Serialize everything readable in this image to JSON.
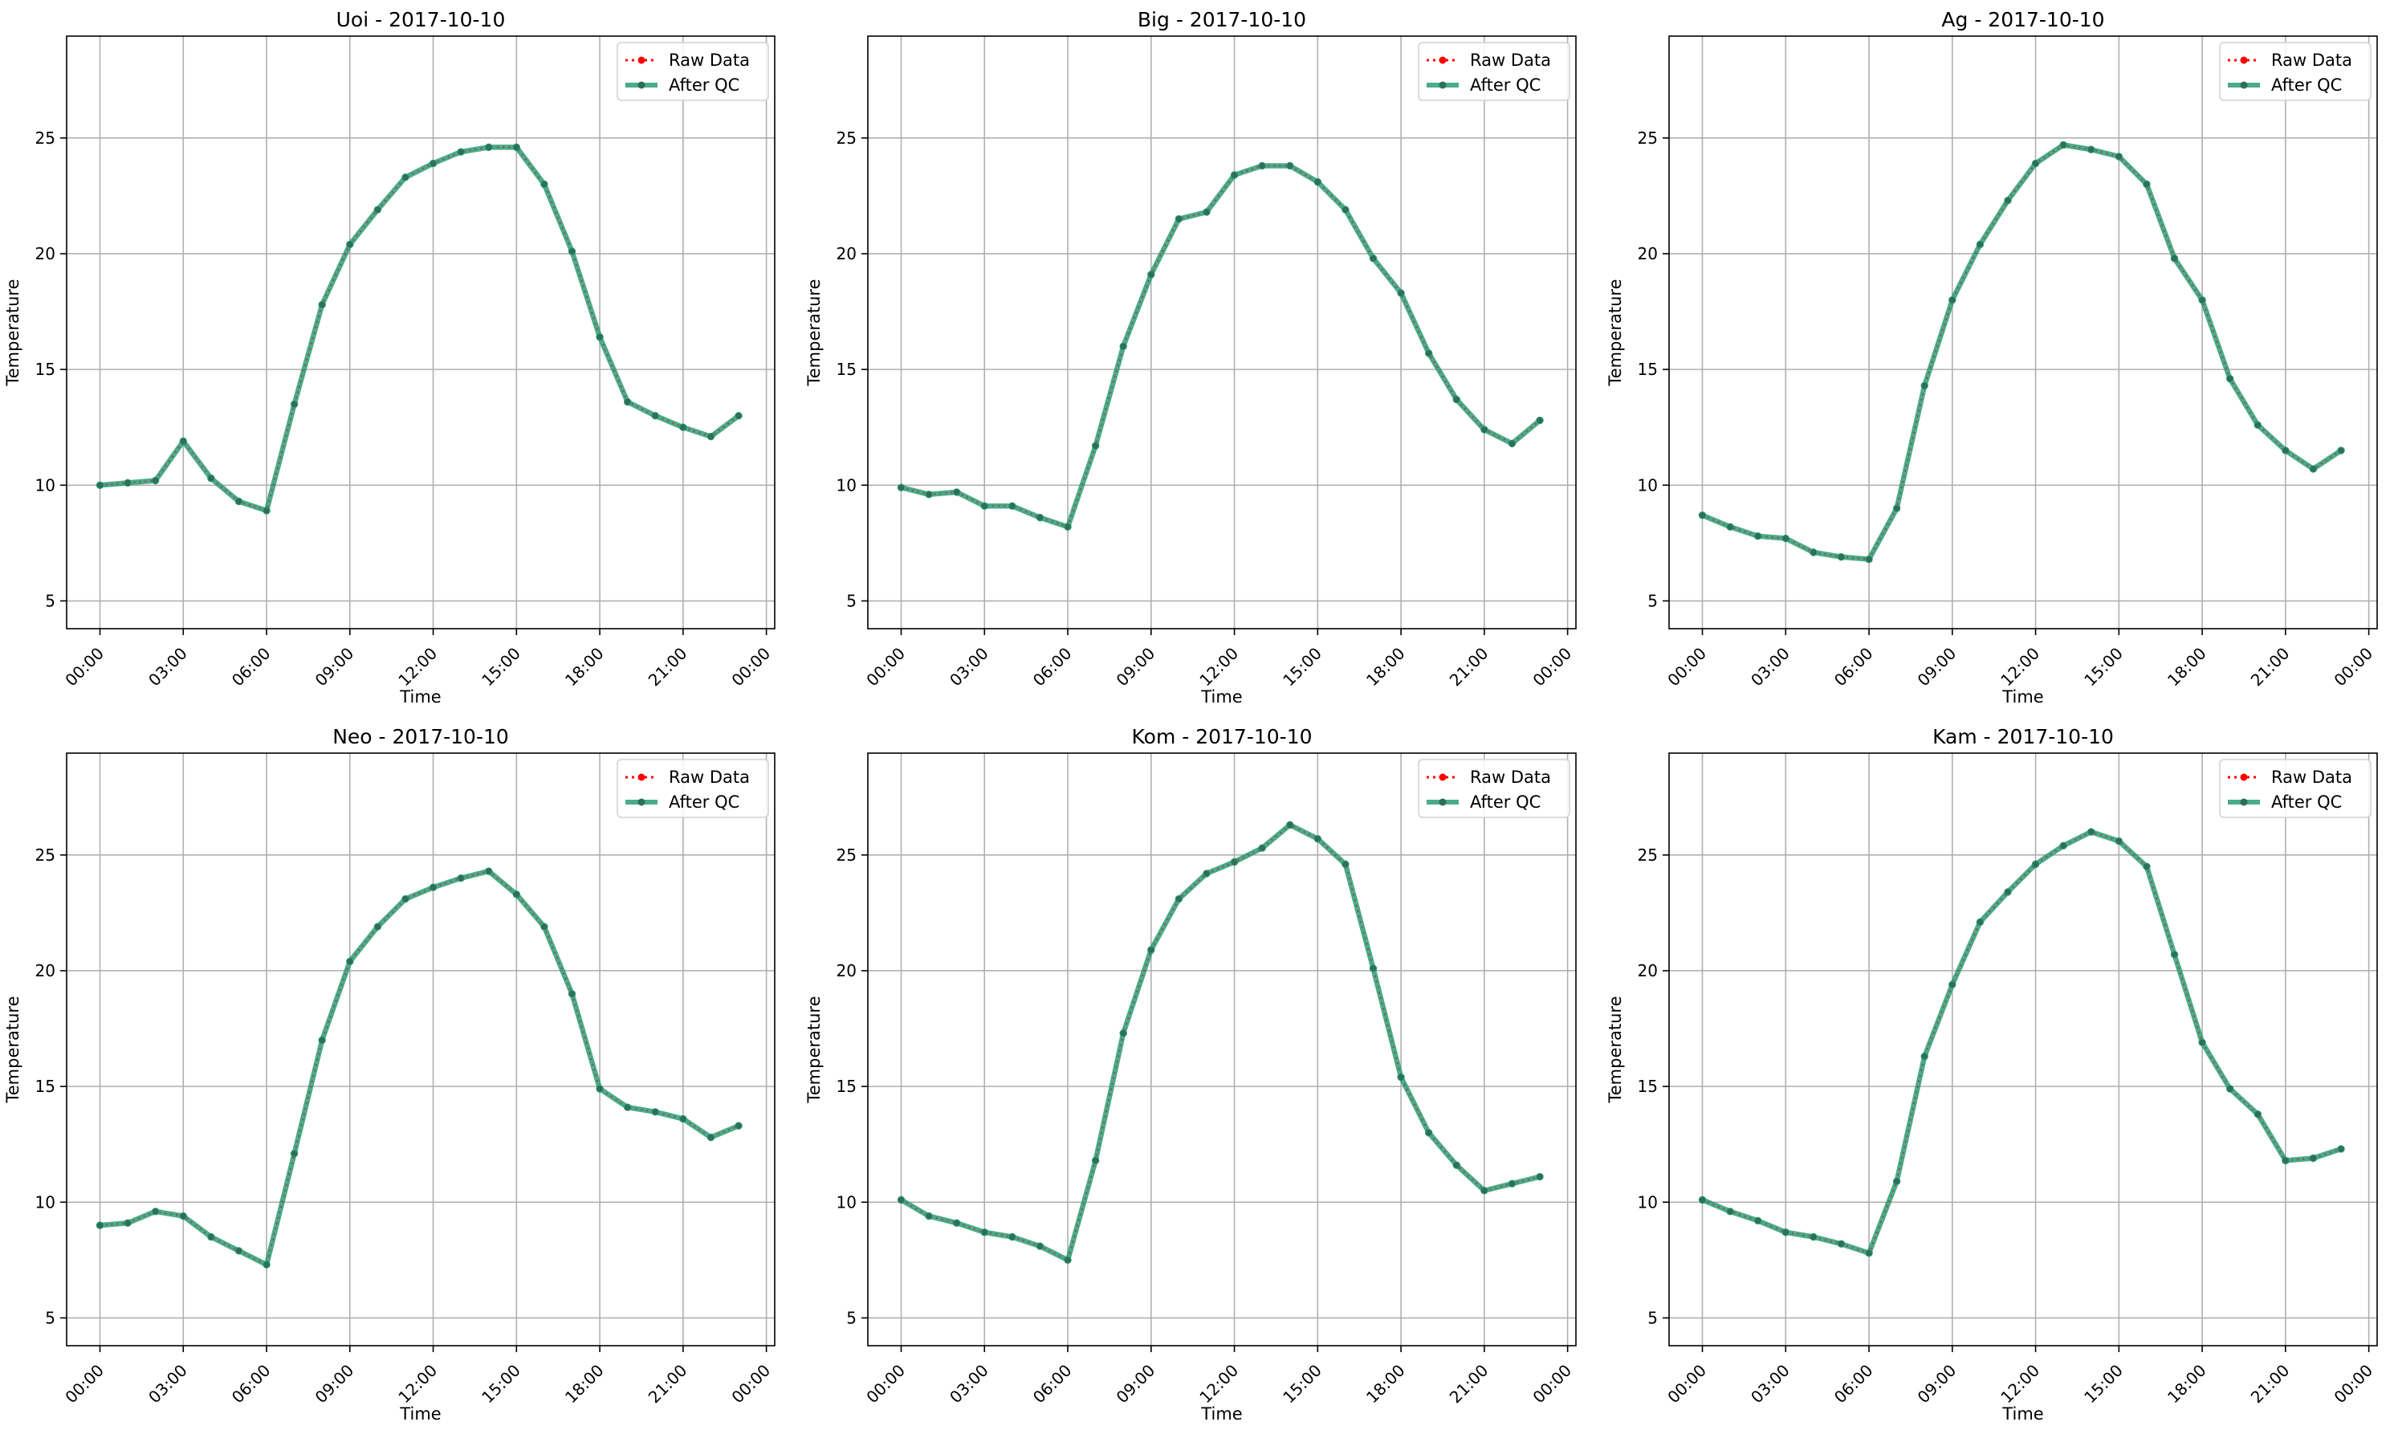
{
  "chart_data": [
    {
      "type": "line",
      "title": "Uoi - 2017-10-10",
      "xlabel": "Time",
      "ylabel": "Temperature",
      "x_ticks": [
        "00:00",
        "03:00",
        "06:00",
        "09:00",
        "12:00",
        "15:00",
        "18:00",
        "21:00",
        "00:00"
      ],
      "y_ticks": [
        5,
        10,
        15,
        20,
        25
      ],
      "xlim": [
        -1.2,
        24.3
      ],
      "ylim": [
        3.8,
        29.4
      ],
      "grid": true,
      "legend_position": "top-right",
      "x_hours": [
        0,
        1,
        2,
        3,
        4,
        5,
        6,
        7,
        8,
        9,
        10,
        11,
        12,
        13,
        14,
        15,
        16,
        17,
        18,
        19,
        20,
        21,
        22,
        23
      ],
      "series": [
        {
          "name": "Raw Data",
          "color": "#ff0000",
          "style": "dotted-markers",
          "values": [
            10.0,
            10.1,
            10.2,
            11.9,
            10.3,
            9.3,
            8.9,
            13.5,
            17.8,
            20.4,
            21.9,
            23.3,
            23.9,
            24.4,
            24.6,
            24.6,
            23.0,
            20.1,
            16.4,
            13.6,
            13.0,
            12.5,
            12.1,
            13.0
          ]
        },
        {
          "name": "After QC",
          "color": "#2a9d75",
          "style": "solid-markers",
          "values": [
            10.0,
            10.1,
            10.2,
            11.9,
            10.3,
            9.3,
            8.9,
            13.5,
            17.8,
            20.4,
            21.9,
            23.3,
            23.9,
            24.4,
            24.6,
            24.6,
            23.0,
            20.1,
            16.4,
            13.6,
            13.0,
            12.5,
            12.1,
            13.0
          ]
        }
      ]
    },
    {
      "type": "line",
      "title": "Big - 2017-10-10",
      "xlabel": "Time",
      "ylabel": "Temperature",
      "x_ticks": [
        "00:00",
        "03:00",
        "06:00",
        "09:00",
        "12:00",
        "15:00",
        "18:00",
        "21:00",
        "00:00"
      ],
      "y_ticks": [
        5,
        10,
        15,
        20,
        25
      ],
      "xlim": [
        -1.2,
        24.3
      ],
      "ylim": [
        3.8,
        29.4
      ],
      "grid": true,
      "legend_position": "top-right",
      "x_hours": [
        0,
        1,
        2,
        3,
        4,
        5,
        6,
        7,
        8,
        9,
        10,
        11,
        12,
        13,
        14,
        15,
        16,
        17,
        18,
        19,
        20,
        21,
        22,
        23
      ],
      "series": [
        {
          "name": "Raw Data",
          "color": "#ff0000",
          "style": "dotted-markers",
          "values": [
            9.9,
            9.6,
            9.7,
            9.1,
            9.1,
            8.6,
            8.2,
            11.7,
            16.0,
            19.1,
            21.5,
            21.8,
            23.4,
            23.8,
            23.8,
            23.1,
            21.9,
            19.8,
            18.3,
            15.7,
            13.7,
            12.4,
            11.8,
            12.8
          ]
        },
        {
          "name": "After QC",
          "color": "#2a9d75",
          "style": "solid-markers",
          "values": [
            9.9,
            9.6,
            9.7,
            9.1,
            9.1,
            8.6,
            8.2,
            11.7,
            16.0,
            19.1,
            21.5,
            21.8,
            23.4,
            23.8,
            23.8,
            23.1,
            21.9,
            19.8,
            18.3,
            15.7,
            13.7,
            12.4,
            11.8,
            12.8
          ]
        }
      ]
    },
    {
      "type": "line",
      "title": "Ag - 2017-10-10",
      "xlabel": "Time",
      "ylabel": "Temperature",
      "x_ticks": [
        "00:00",
        "03:00",
        "06:00",
        "09:00",
        "12:00",
        "15:00",
        "18:00",
        "21:00",
        "00:00"
      ],
      "y_ticks": [
        5,
        10,
        15,
        20,
        25
      ],
      "xlim": [
        -1.2,
        24.3
      ],
      "ylim": [
        3.8,
        29.4
      ],
      "grid": true,
      "legend_position": "top-right",
      "x_hours": [
        0,
        1,
        2,
        3,
        4,
        5,
        6,
        7,
        8,
        9,
        10,
        11,
        12,
        13,
        14,
        15,
        16,
        17,
        18,
        19,
        20,
        21,
        22,
        23
      ],
      "series": [
        {
          "name": "Raw Data",
          "color": "#ff0000",
          "style": "dotted-markers",
          "values": [
            8.7,
            8.2,
            7.8,
            7.7,
            7.1,
            6.9,
            6.8,
            9.0,
            14.3,
            18.0,
            20.4,
            22.3,
            23.9,
            24.7,
            24.5,
            24.2,
            23.0,
            19.8,
            18.0,
            14.6,
            12.6,
            11.5,
            10.7,
            11.5
          ]
        },
        {
          "name": "After QC",
          "color": "#2a9d75",
          "style": "solid-markers",
          "values": [
            8.7,
            8.2,
            7.8,
            7.7,
            7.1,
            6.9,
            6.8,
            9.0,
            14.3,
            18.0,
            20.4,
            22.3,
            23.9,
            24.7,
            24.5,
            24.2,
            23.0,
            19.8,
            18.0,
            14.6,
            12.6,
            11.5,
            10.7,
            11.5
          ]
        }
      ]
    },
    {
      "type": "line",
      "title": "Neo - 2017-10-10",
      "xlabel": "Time",
      "ylabel": "Temperature",
      "x_ticks": [
        "00:00",
        "03:00",
        "06:00",
        "09:00",
        "12:00",
        "15:00",
        "18:00",
        "21:00",
        "00:00"
      ],
      "y_ticks": [
        5,
        10,
        15,
        20,
        25
      ],
      "xlim": [
        -1.2,
        24.3
      ],
      "ylim": [
        3.8,
        29.4
      ],
      "grid": true,
      "legend_position": "top-right",
      "x_hours": [
        0,
        1,
        2,
        3,
        4,
        5,
        6,
        7,
        8,
        9,
        10,
        11,
        12,
        13,
        14,
        15,
        16,
        17,
        18,
        19,
        20,
        21,
        22,
        23
      ],
      "series": [
        {
          "name": "Raw Data",
          "color": "#ff0000",
          "style": "dotted-markers",
          "values": [
            9.0,
            9.1,
            9.6,
            9.4,
            8.5,
            7.9,
            7.3,
            12.1,
            17.0,
            20.4,
            21.9,
            23.1,
            23.6,
            24.0,
            24.3,
            23.3,
            21.9,
            19.0,
            14.9,
            14.1,
            13.9,
            13.6,
            12.8,
            13.3
          ]
        },
        {
          "name": "After QC",
          "color": "#2a9d75",
          "style": "solid-markers",
          "values": [
            9.0,
            9.1,
            9.6,
            9.4,
            8.5,
            7.9,
            7.3,
            12.1,
            17.0,
            20.4,
            21.9,
            23.1,
            23.6,
            24.0,
            24.3,
            23.3,
            21.9,
            19.0,
            14.9,
            14.1,
            13.9,
            13.6,
            12.8,
            13.3
          ]
        }
      ]
    },
    {
      "type": "line",
      "title": "Kom - 2017-10-10",
      "xlabel": "Time",
      "ylabel": "Temperature",
      "x_ticks": [
        "00:00",
        "03:00",
        "06:00",
        "09:00",
        "12:00",
        "15:00",
        "18:00",
        "21:00",
        "00:00"
      ],
      "y_ticks": [
        5,
        10,
        15,
        20,
        25
      ],
      "xlim": [
        -1.2,
        24.3
      ],
      "ylim": [
        3.8,
        29.4
      ],
      "grid": true,
      "legend_position": "top-right",
      "x_hours": [
        0,
        1,
        2,
        3,
        4,
        5,
        6,
        7,
        8,
        9,
        10,
        11,
        12,
        13,
        14,
        15,
        16,
        17,
        18,
        19,
        20,
        21,
        22,
        23
      ],
      "series": [
        {
          "name": "Raw Data",
          "color": "#ff0000",
          "style": "dotted-markers",
          "values": [
            10.1,
            9.4,
            9.1,
            8.7,
            8.5,
            8.1,
            7.5,
            11.8,
            17.3,
            20.9,
            23.1,
            24.2,
            24.7,
            25.3,
            26.3,
            25.7,
            24.6,
            20.1,
            15.4,
            13.0,
            11.6,
            10.5,
            10.8,
            11.1
          ]
        },
        {
          "name": "After QC",
          "color": "#2a9d75",
          "style": "solid-markers",
          "values": [
            10.1,
            9.4,
            9.1,
            8.7,
            8.5,
            8.1,
            7.5,
            11.8,
            17.3,
            20.9,
            23.1,
            24.2,
            24.7,
            25.3,
            26.3,
            25.7,
            24.6,
            20.1,
            15.4,
            13.0,
            11.6,
            10.5,
            10.8,
            11.1
          ]
        }
      ]
    },
    {
      "type": "line",
      "title": "Kam - 2017-10-10",
      "xlabel": "Time",
      "ylabel": "Temperature",
      "x_ticks": [
        "00:00",
        "03:00",
        "06:00",
        "09:00",
        "12:00",
        "15:00",
        "18:00",
        "21:00",
        "00:00"
      ],
      "y_ticks": [
        5,
        10,
        15,
        20,
        25
      ],
      "xlim": [
        -1.2,
        24.3
      ],
      "ylim": [
        3.8,
        29.4
      ],
      "grid": true,
      "legend_position": "top-right",
      "x_hours": [
        0,
        1,
        2,
        3,
        4,
        5,
        6,
        7,
        8,
        9,
        10,
        11,
        12,
        13,
        14,
        15,
        16,
        17,
        18,
        19,
        20,
        21,
        22,
        23
      ],
      "series": [
        {
          "name": "Raw Data",
          "color": "#ff0000",
          "style": "dotted-markers",
          "values": [
            10.1,
            9.6,
            9.2,
            8.7,
            8.5,
            8.2,
            7.8,
            10.9,
            16.3,
            19.4,
            22.1,
            23.4,
            24.6,
            25.4,
            26.0,
            25.6,
            24.5,
            20.7,
            16.9,
            14.9,
            13.8,
            11.8,
            11.9,
            12.3
          ]
        },
        {
          "name": "After QC",
          "color": "#2a9d75",
          "style": "solid-markers",
          "values": [
            10.1,
            9.6,
            9.2,
            8.7,
            8.5,
            8.2,
            7.8,
            10.9,
            16.3,
            19.4,
            22.1,
            23.4,
            24.6,
            25.4,
            26.0,
            25.6,
            24.5,
            20.7,
            16.9,
            14.9,
            13.8,
            11.8,
            11.9,
            12.3
          ]
        }
      ]
    }
  ]
}
